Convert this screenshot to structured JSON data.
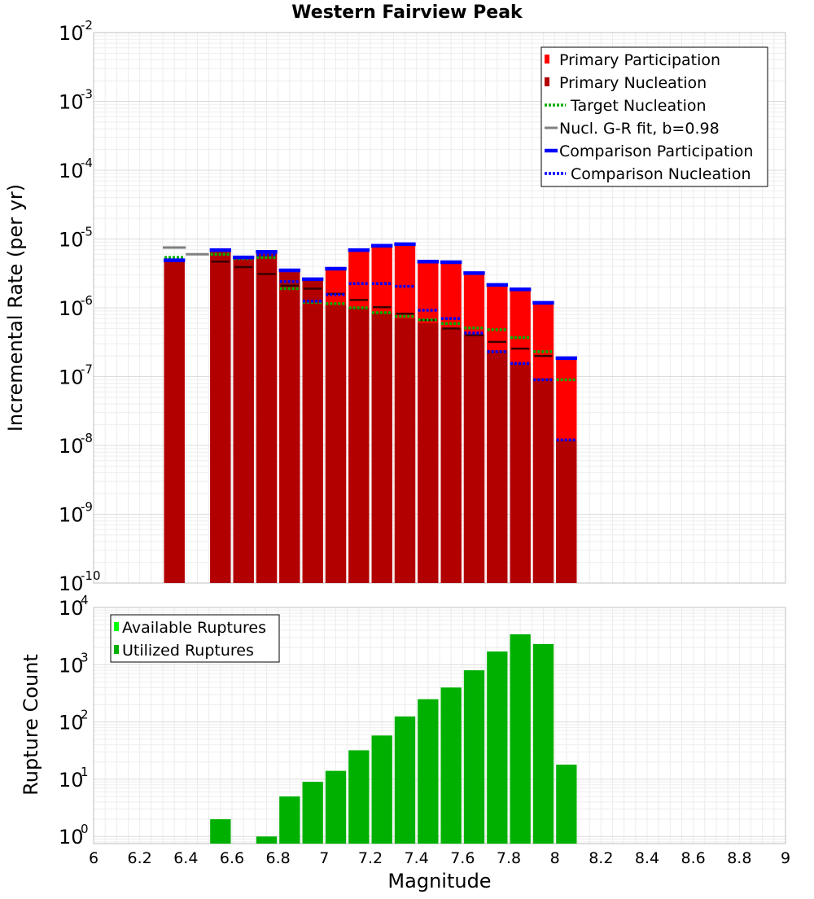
{
  "chart_data": [
    {
      "type": "bar",
      "title": "Western Fairview Peak",
      "xlabel": "",
      "ylabel": "Incremental Rate (per yr)",
      "xlim": [
        6,
        9
      ],
      "ylim": [
        1e-10,
        0.01
      ],
      "yscale": "log",
      "ytick_base": "10",
      "ytick_exponents": [
        "-10",
        "-9",
        "-8",
        "-7",
        "-6",
        "-5",
        "-4",
        "-3",
        "-2"
      ],
      "grid": true,
      "legend_placement": "top-right",
      "colors": {
        "primary_participation": "#ff0000",
        "primary_nucleation": "#b20000",
        "target_nucleation": "#00b000",
        "gr_fit": "#808080",
        "comparison_participation": "#0000ff",
        "comparison_nucleation": "#0000ff",
        "nucleation_mark": "#3a0000"
      },
      "legend": [
        {
          "key": "primary_participation",
          "label": "Primary Participation",
          "style": "box"
        },
        {
          "key": "primary_nucleation",
          "label": "Primary Nucleation",
          "style": "box"
        },
        {
          "key": "target_nucleation",
          "label": "Target Nucleation",
          "style": "dotted"
        },
        {
          "key": "gr_fit",
          "label": "Nucl. G-R fit, b=0.98",
          "style": "solid"
        },
        {
          "key": "comparison_participation",
          "label": "Comparison Participation",
          "style": "thick"
        },
        {
          "key": "comparison_nucleation",
          "label": "Comparison Nucleation",
          "style": "dotted"
        }
      ],
      "bin_width": 0.1,
      "x": [
        6.35,
        6.45,
        6.55,
        6.65,
        6.75,
        6.85,
        6.95,
        7.05,
        7.15,
        7.25,
        7.35,
        7.45,
        7.55,
        7.65,
        7.75,
        7.85,
        7.95,
        8.05
      ],
      "series": [
        {
          "name": "Primary Participation",
          "key": "primary_participation",
          "kind": "bar",
          "values": [
            4.7e-06,
            null,
            6.8e-06,
            5.3e-06,
            6.3e-06,
            3.4e-06,
            2.5e-06,
            3.6e-06,
            6.8e-06,
            8e-06,
            8.3e-06,
            4.6e-06,
            4.5e-06,
            3.1e-06,
            2.1e-06,
            1.8e-06,
            1.15e-06,
            1.8e-07
          ]
        },
        {
          "name": "Primary Nucleation",
          "key": "primary_nucleation",
          "kind": "bar",
          "values": [
            4.7e-06,
            null,
            6.8e-06,
            5.3e-06,
            6.3e-06,
            3.4e-06,
            2.5e-06,
            1.1e-06,
            1e-06,
            8.5e-07,
            7e-07,
            6e-07,
            5e-07,
            4.1e-07,
            2.4e-07,
            1.6e-07,
            9.5e-08,
            1.2e-08
          ]
        },
        {
          "name": "Nucleation marks",
          "key": "nucleation_mark",
          "kind": "tick",
          "values": [
            null,
            null,
            4.7e-06,
            3.9e-06,
            3.1e-06,
            2.1e-06,
            1.9e-06,
            1.6e-06,
            1.3e-06,
            1.02e-06,
            8.2e-07,
            6.6e-07,
            5e-07,
            4e-07,
            3.2e-07,
            2.55e-07,
            2e-07,
            null
          ]
        },
        {
          "name": "Target Nucleation",
          "key": "target_nucleation",
          "kind": "dotted",
          "values": [
            5.4e-06,
            null,
            6e-06,
            5.2e-06,
            5.4e-06,
            1.9e-06,
            1.2e-06,
            1.15e-06,
            1e-06,
            8.5e-07,
            7.5e-07,
            6.7e-07,
            5.9e-07,
            5.1e-07,
            4.8e-07,
            3.7e-07,
            2.3e-07,
            9e-08
          ]
        },
        {
          "name": "Nucl. G-R fit, b=0.98",
          "key": "gr_fit",
          "kind": "solid",
          "values": [
            7.5e-06,
            6e-06,
            null,
            null,
            null,
            null,
            null,
            null,
            null,
            null,
            null,
            null,
            null,
            null,
            null,
            null,
            null,
            null
          ]
        },
        {
          "name": "Comparison Participation",
          "key": "comparison_participation",
          "kind": "thick",
          "values": [
            4.9e-06,
            null,
            6.9e-06,
            5.4e-06,
            6.5e-06,
            3.5e-06,
            2.6e-06,
            3.7e-06,
            6.9e-06,
            8e-06,
            8.4e-06,
            4.7e-06,
            4.6e-06,
            3.2e-06,
            2.15e-06,
            1.85e-06,
            1.18e-06,
            1.85e-07
          ]
        },
        {
          "name": "Comparison Nucleation",
          "key": "comparison_nucleation",
          "kind": "dotted",
          "values": [
            null,
            null,
            6.9e-06,
            null,
            5.9e-06,
            2.4e-06,
            1.25e-06,
            1.55e-06,
            2.25e-06,
            2.25e-06,
            2.05e-06,
            9.2e-07,
            7e-07,
            4.3e-07,
            2.3e-07,
            1.55e-07,
            9e-08,
            1.2e-08
          ]
        }
      ]
    },
    {
      "type": "bar",
      "title": "",
      "xlabel": "Magnitude",
      "ylabel": "Rupture Count",
      "xlim": [
        6,
        9
      ],
      "ylim": [
        0.75,
        10000
      ],
      "yscale": "log",
      "ytick_base": "10",
      "ytick_exponents": [
        "0",
        "1",
        "2",
        "3",
        "4"
      ],
      "xtick_labels": [
        "6",
        "6.2",
        "6.4",
        "6.6",
        "6.8",
        "7",
        "7.2",
        "7.4",
        "7.6",
        "7.8",
        "8",
        "8.2",
        "8.4",
        "8.6",
        "8.8",
        "9"
      ],
      "grid": true,
      "legend_placement": "top-left",
      "colors": {
        "available": "#00ff00",
        "utilized": "#00b000"
      },
      "legend": [
        {
          "key": "available",
          "label": "Available Ruptures"
        },
        {
          "key": "utilized",
          "label": "Utilized Ruptures"
        }
      ],
      "bin_width": 0.1,
      "x": [
        6.55,
        6.75,
        6.85,
        6.95,
        7.05,
        7.15,
        7.25,
        7.35,
        7.45,
        7.55,
        7.65,
        7.75,
        7.85,
        7.95,
        8.05
      ],
      "series": [
        {
          "name": "Utilized Ruptures",
          "key": "utilized",
          "values": [
            2,
            1,
            5,
            9,
            14,
            32,
            58,
            125,
            250,
            400,
            800,
            1700,
            3400,
            2300,
            18
          ]
        }
      ]
    }
  ]
}
